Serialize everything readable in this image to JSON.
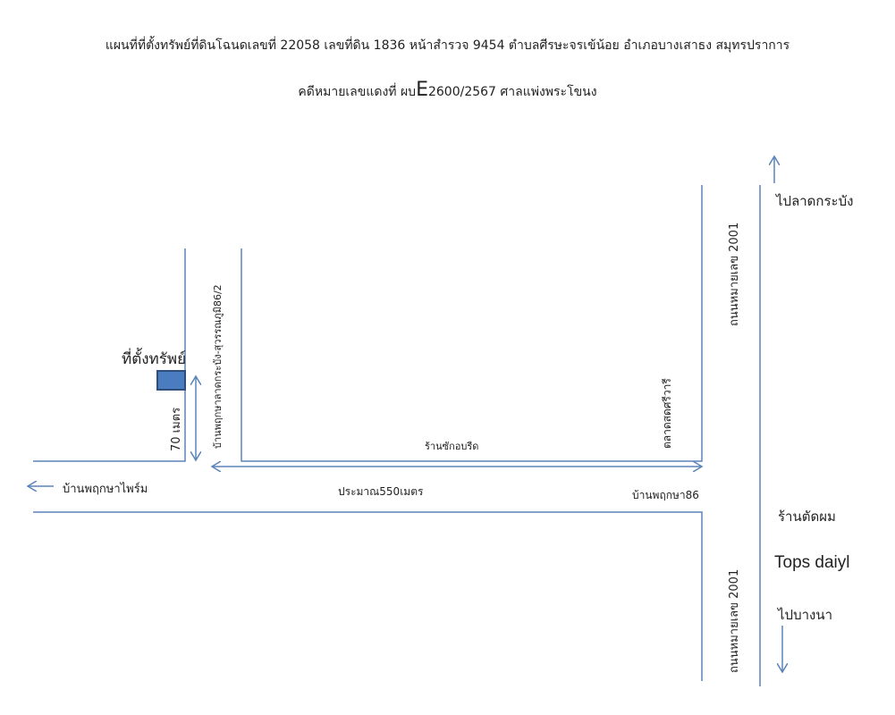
{
  "title_line1": "แผนที่ที่ตั้งทรัพย์ที่ดินโฉนดเลขที่ 22058  เลขที่ดิน 1836  หน้าสำรวจ 9454 ตำบลศีรษะจรเข้น้อย อำเภอบางเสาธง สมุทรปราการ",
  "title_line2_prefix": "คดีหมายเลขแดงที่ ผบ",
  "title_line2_e": "E",
  "title_line2_suffix": "2600/2567 ศาลแพ่งพระโขนง",
  "labels": {
    "property": "ที่ตั้งทรัพย์",
    "distance_70": "70 เมตร",
    "soi": "บ้านพฤกษาลาดกระบัง-สุวรรณภูมิ86/2",
    "to_pruksa_prime": "บ้านพฤกษาไพร์ม",
    "approx_550": "ประมาณ550เมตร",
    "car_care": "ร้านซักอบรีด",
    "market": "ตลาดสดศรีวารี",
    "pruksa86": "บ้านพฤกษา86",
    "road_2001_top": "ถนนหมายเลข 2001",
    "road_2001_bottom": "ถนนหมายเลข 2001",
    "to_lat_krabang": "ไปลาดกระบัง",
    "barber": "ร้านตัดผม",
    "tops": "Tops daiyl",
    "to_bang_na": "ไปบางนา"
  },
  "colors": {
    "road": "#5b84b8",
    "property": "#4a7cc0",
    "property_border": "#2f4f7a"
  }
}
